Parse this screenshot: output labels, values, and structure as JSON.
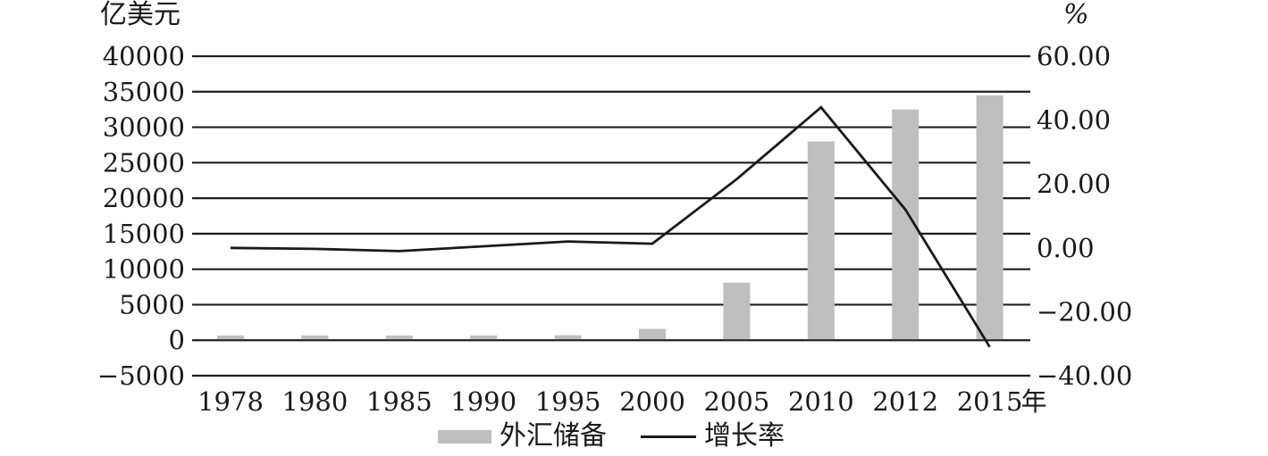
{
  "figure": {
    "left_axis_title": "亿美元",
    "right_axis_title": "%",
    "x_axis_unit": "年"
  },
  "legend": {
    "bar_label": "外汇储备",
    "line_label": "增长率"
  },
  "colors": {
    "bar": "#bfbfbf",
    "line": "#1a1a1a",
    "grid": "#1f1f1f",
    "text": "#1a1a1a"
  },
  "chart_data": {
    "type": "bar",
    "subtype": "combo-bar-line",
    "categories": [
      "1978",
      "1980",
      "1985",
      "1990",
      "1995",
      "2000",
      "2005",
      "2010",
      "2012",
      "2015"
    ],
    "series": [
      {
        "name": "外汇储备",
        "type": "bar",
        "axis": "left",
        "unit": "亿美元",
        "values": [
          400,
          400,
          450,
          550,
          700,
          1600,
          8100,
          28000,
          32500,
          34500
        ]
      },
      {
        "name": "增长率",
        "type": "line",
        "axis": "right",
        "unit": "%",
        "values": [
          0,
          -0.3,
          -1,
          0.5,
          2,
          1.3,
          21.5,
          44,
          12,
          -31
        ]
      }
    ],
    "left_axis": {
      "label": "亿美元",
      "ticks": [
        40000,
        35000,
        30000,
        25000,
        20000,
        15000,
        10000,
        5000,
        0,
        -5000
      ],
      "range": [
        -5000,
        40000
      ]
    },
    "right_axis": {
      "label": "%",
      "ticks": [
        60,
        40,
        20,
        0,
        -20,
        -40
      ],
      "range": [
        -40,
        60
      ],
      "decimals": 2
    },
    "x_axis": {
      "unit_suffix": "年"
    },
    "grid": true,
    "legend_position": "bottom"
  }
}
